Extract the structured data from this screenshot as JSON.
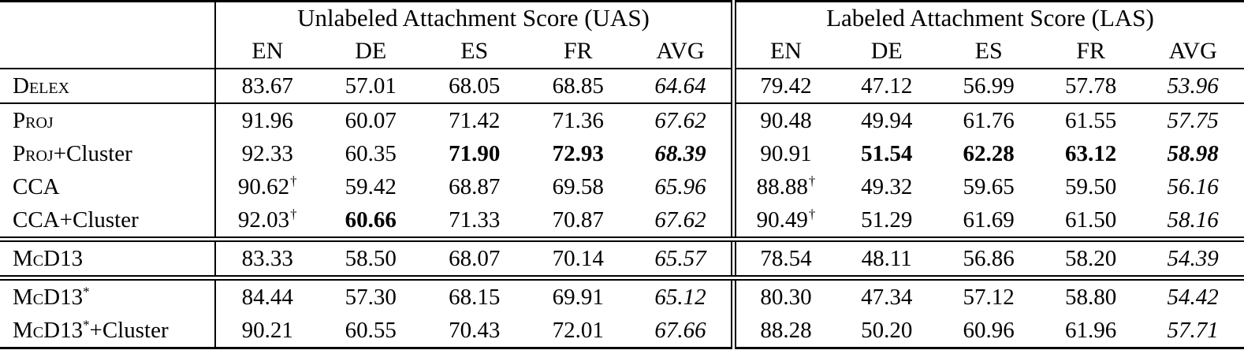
{
  "table": {
    "dagger_symbol": "†",
    "sections": [
      {
        "key": "uas",
        "label": "Unlabeled Attachment Score (UAS)"
      },
      {
        "key": "las",
        "label": "Labeled Attachment Score (LAS)"
      }
    ],
    "lang_columns": [
      "EN",
      "DE",
      "ES",
      "FR",
      "AVG"
    ],
    "rows": [
      {
        "label_segments": [
          {
            "text": "Delex",
            "smallcaps": true
          }
        ],
        "rule_below": "single",
        "uas": [
          {
            "v": "83.67"
          },
          {
            "v": "57.01"
          },
          {
            "v": "68.05"
          },
          {
            "v": "68.85"
          },
          {
            "v": "64.64",
            "style": "i"
          }
        ],
        "las": [
          {
            "v": "79.42"
          },
          {
            "v": "47.12"
          },
          {
            "v": "56.99"
          },
          {
            "v": "57.78"
          },
          {
            "v": "53.96",
            "style": "i"
          }
        ]
      },
      {
        "label_segments": [
          {
            "text": "Proj",
            "smallcaps": true
          }
        ],
        "rule_below": "none",
        "uas": [
          {
            "v": "91.96"
          },
          {
            "v": "60.07"
          },
          {
            "v": "71.42"
          },
          {
            "v": "71.36"
          },
          {
            "v": "67.62",
            "style": "i"
          }
        ],
        "las": [
          {
            "v": "90.48"
          },
          {
            "v": "49.94"
          },
          {
            "v": "61.76"
          },
          {
            "v": "61.55"
          },
          {
            "v": "57.75",
            "style": "i"
          }
        ]
      },
      {
        "label_segments": [
          {
            "text": "Proj",
            "smallcaps": true
          },
          {
            "text": "+Cluster"
          }
        ],
        "rule_below": "none",
        "uas": [
          {
            "v": "92.33"
          },
          {
            "v": "60.35"
          },
          {
            "v": "71.90",
            "style": "b"
          },
          {
            "v": "72.93",
            "style": "b"
          },
          {
            "v": "68.39",
            "style": "bi"
          }
        ],
        "las": [
          {
            "v": "90.91"
          },
          {
            "v": "51.54",
            "style": "b"
          },
          {
            "v": "62.28",
            "style": "b"
          },
          {
            "v": "63.12",
            "style": "b"
          },
          {
            "v": "58.98",
            "style": "bi"
          }
        ]
      },
      {
        "label_segments": [
          {
            "text": "CCA",
            "smallcaps": true
          }
        ],
        "rule_below": "none",
        "uas": [
          {
            "v": "90.62",
            "dagger": true
          },
          {
            "v": "59.42"
          },
          {
            "v": "68.87"
          },
          {
            "v": "69.58"
          },
          {
            "v": "65.96",
            "style": "i"
          }
        ],
        "las": [
          {
            "v": "88.88",
            "dagger": true
          },
          {
            "v": "49.32"
          },
          {
            "v": "59.65"
          },
          {
            "v": "59.50"
          },
          {
            "v": "56.16",
            "style": "i"
          }
        ]
      },
      {
        "label_segments": [
          {
            "text": "CCA",
            "smallcaps": true
          },
          {
            "text": "+Cluster"
          }
        ],
        "rule_below": "double",
        "uas": [
          {
            "v": "92.03",
            "dagger": true
          },
          {
            "v": "60.66",
            "style": "b"
          },
          {
            "v": "71.33"
          },
          {
            "v": "70.87"
          },
          {
            "v": "67.62",
            "style": "i"
          }
        ],
        "las": [
          {
            "v": "90.49",
            "dagger": true
          },
          {
            "v": "51.29"
          },
          {
            "v": "61.69"
          },
          {
            "v": "61.50"
          },
          {
            "v": "58.16",
            "style": "i"
          }
        ]
      },
      {
        "label_segments": [
          {
            "text": "McD13",
            "smallcaps": true
          }
        ],
        "rule_below": "double",
        "uas": [
          {
            "v": "83.33"
          },
          {
            "v": "58.50"
          },
          {
            "v": "68.07"
          },
          {
            "v": "70.14"
          },
          {
            "v": "65.57",
            "style": "i"
          }
        ],
        "las": [
          {
            "v": "78.54"
          },
          {
            "v": "48.11"
          },
          {
            "v": "56.86"
          },
          {
            "v": "58.20"
          },
          {
            "v": "54.39",
            "style": "i"
          }
        ]
      },
      {
        "label_segments": [
          {
            "text": "McD13",
            "smallcaps": true
          },
          {
            "text": "*",
            "sup": true
          }
        ],
        "rule_below": "none",
        "uas": [
          {
            "v": "84.44"
          },
          {
            "v": "57.30"
          },
          {
            "v": "68.15"
          },
          {
            "v": "69.91"
          },
          {
            "v": "65.12",
            "style": "i"
          }
        ],
        "las": [
          {
            "v": "80.30"
          },
          {
            "v": "47.34"
          },
          {
            "v": "57.12"
          },
          {
            "v": "58.80"
          },
          {
            "v": "54.42",
            "style": "i"
          }
        ]
      },
      {
        "label_segments": [
          {
            "text": "McD13",
            "smallcaps": true
          },
          {
            "text": "*",
            "sup": true
          },
          {
            "text": "+Cluster"
          }
        ],
        "rule_below": "none",
        "uas": [
          {
            "v": "90.21"
          },
          {
            "v": "60.55"
          },
          {
            "v": "70.43"
          },
          {
            "v": "72.01"
          },
          {
            "v": "67.66",
            "style": "i"
          }
        ],
        "las": [
          {
            "v": "88.28"
          },
          {
            "v": "50.20"
          },
          {
            "v": "60.96"
          },
          {
            "v": "61.96"
          },
          {
            "v": "57.71",
            "style": "i"
          }
        ]
      }
    ]
  }
}
